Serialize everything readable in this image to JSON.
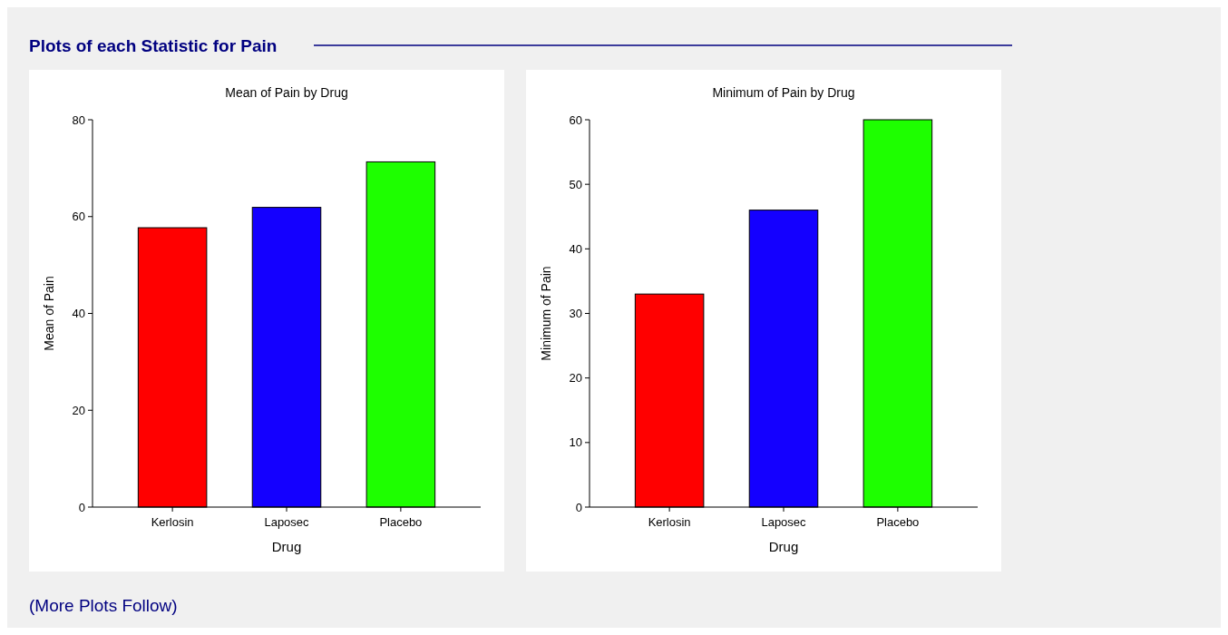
{
  "chart_data": [
    {
      "type": "bar",
      "title": "Mean of Pain by Drug",
      "xlabel": "Drug",
      "ylabel": "Mean of Pain",
      "categories": [
        "Kerlosin",
        "Laposec",
        "Placebo"
      ],
      "values": [
        57.7,
        61.9,
        71.3
      ],
      "colors": [
        "#ff0000",
        "#1400ff",
        "#1eff00"
      ],
      "ylim": [
        0,
        80
      ],
      "yticks": [
        0,
        20,
        40,
        60,
        80
      ],
      "grid": false,
      "annotations": [
        "Plots of each Statistic for Pain"
      ]
    },
    {
      "type": "bar",
      "title": "Minimum of Pain by Drug",
      "xlabel": "Drug",
      "ylabel": "Minimum of Pain",
      "categories": [
        "Kerlosin",
        "Laposec",
        "Placebo"
      ],
      "values": [
        33,
        46,
        60
      ],
      "colors": [
        "#ff0000",
        "#1400ff",
        "#1eff00"
      ],
      "ylim": [
        0,
        60
      ],
      "yticks": [
        0,
        10,
        20,
        30,
        40,
        50,
        60
      ],
      "grid": false,
      "annotations": [
        "(More Plots Follow)"
      ]
    }
  ]
}
